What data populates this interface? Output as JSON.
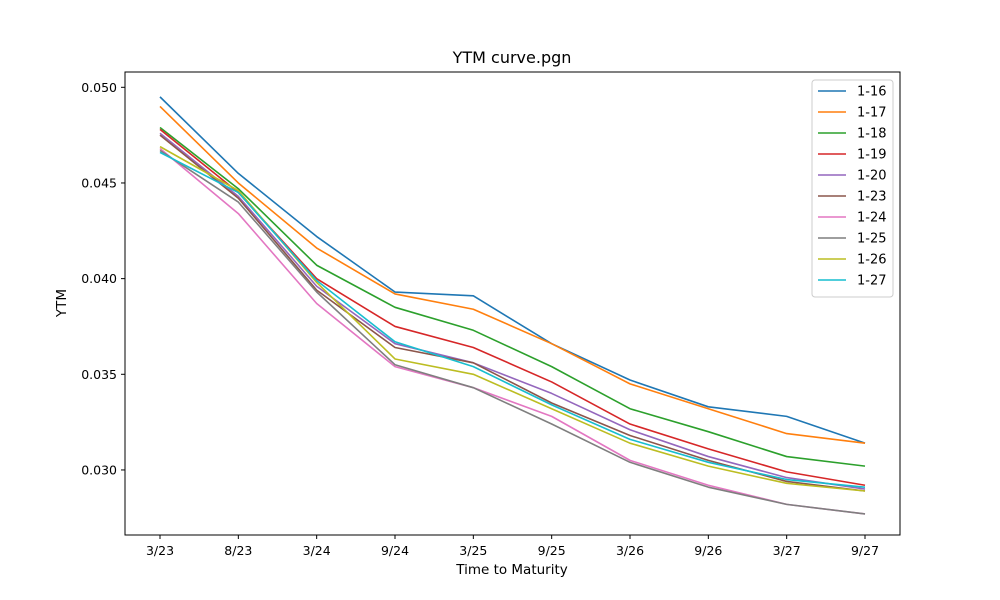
{
  "chart_data": {
    "type": "line",
    "title": "YTM curve.pgn",
    "xlabel": "Time to Maturity",
    "ylabel": "YTM",
    "categories": [
      "3/23",
      "8/23",
      "3/24",
      "9/24",
      "3/25",
      "9/25",
      "3/26",
      "9/26",
      "3/27",
      "9/27"
    ],
    "ylim": [
      0.0266,
      0.0508
    ],
    "yticks": [
      0.03,
      0.035,
      0.04,
      0.045,
      0.05
    ],
    "ytick_labels": [
      "0.030",
      "0.035",
      "0.040",
      "0.045",
      "0.050"
    ],
    "grid": false,
    "legend_position": "top-right",
    "series": [
      {
        "name": "1-16",
        "color": "#1f77b4",
        "values": [
          0.0495,
          0.0455,
          0.0422,
          0.0393,
          0.0391,
          0.0366,
          0.0347,
          0.0333,
          0.0328,
          0.0314
        ]
      },
      {
        "name": "1-17",
        "color": "#ff7f0e",
        "values": [
          0.049,
          0.045,
          0.0416,
          0.0392,
          0.0384,
          0.0366,
          0.0345,
          0.0332,
          0.0319,
          0.0314
        ]
      },
      {
        "name": "1-18",
        "color": "#2ca02c",
        "values": [
          0.0479,
          0.0447,
          0.0407,
          0.0385,
          0.0373,
          0.0354,
          0.0332,
          0.032,
          0.0307,
          0.0302
        ]
      },
      {
        "name": "1-19",
        "color": "#d62728",
        "values": [
          0.0478,
          0.0445,
          0.04,
          0.0375,
          0.0364,
          0.0346,
          0.0324,
          0.0311,
          0.0299,
          0.0292
        ]
      },
      {
        "name": "1-20",
        "color": "#9467bd",
        "values": [
          0.0476,
          0.0443,
          0.0396,
          0.0366,
          0.0356,
          0.034,
          0.0321,
          0.0307,
          0.0296,
          0.029
        ]
      },
      {
        "name": "1-23",
        "color": "#8c564b",
        "values": [
          0.0475,
          0.0442,
          0.0394,
          0.0364,
          0.0356,
          0.0335,
          0.0318,
          0.0305,
          0.0294,
          0.0289
        ]
      },
      {
        "name": "1-24",
        "color": "#e377c2",
        "values": [
          0.0468,
          0.0434,
          0.0387,
          0.0354,
          0.0343,
          0.0328,
          0.0305,
          0.0292,
          0.0282,
          0.0277
        ]
      },
      {
        "name": "1-25",
        "color": "#7f7f7f",
        "values": [
          0.0467,
          0.044,
          0.0393,
          0.0355,
          0.0343,
          0.0324,
          0.0304,
          0.0291,
          0.0282,
          0.0277
        ]
      },
      {
        "name": "1-26",
        "color": "#bcbd22",
        "values": [
          0.0469,
          0.0446,
          0.0398,
          0.0358,
          0.035,
          0.0332,
          0.0314,
          0.0302,
          0.0293,
          0.0289
        ]
      },
      {
        "name": "1-27",
        "color": "#17becf",
        "values": [
          0.0466,
          0.0445,
          0.0399,
          0.0367,
          0.0354,
          0.0334,
          0.0316,
          0.0304,
          0.0295,
          0.0291
        ]
      }
    ]
  }
}
